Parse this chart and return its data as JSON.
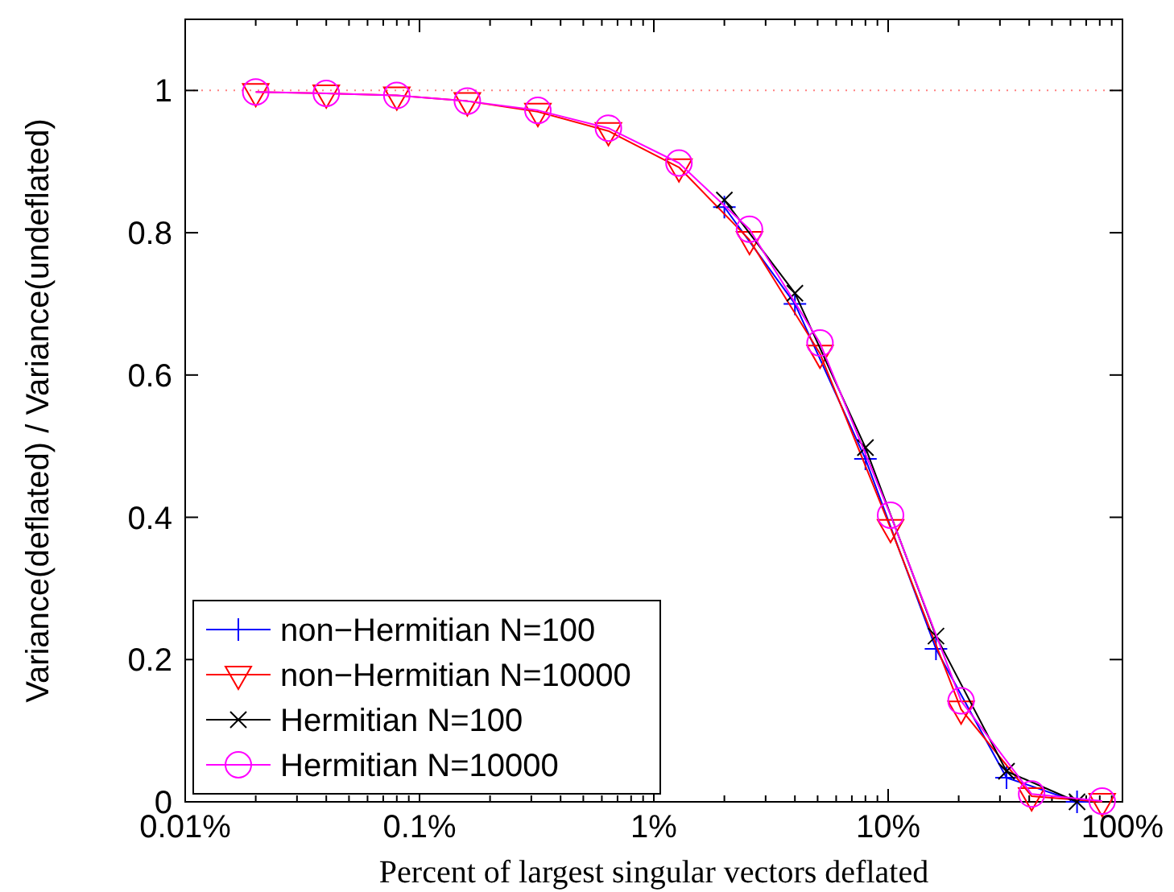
{
  "chart_data": {
    "type": "line",
    "xlabel": "Percent of largest singular vectors deflated",
    "ylabel": "Variance(deflated) / Variance(undeflated)",
    "log": "x",
    "xlim": [
      0.01,
      100
    ],
    "ylim": [
      0,
      1.1
    ],
    "xticks": [
      {
        "value": 0.01,
        "label": "0.01%"
      },
      {
        "value": 0.02,
        "label": null
      },
      {
        "value": 0.03,
        "label": null
      },
      {
        "value": 0.04,
        "label": null
      },
      {
        "value": 0.05,
        "label": null
      },
      {
        "value": 0.06,
        "label": null
      },
      {
        "value": 0.07,
        "label": null
      },
      {
        "value": 0.08,
        "label": null
      },
      {
        "value": 0.09,
        "label": null
      },
      {
        "value": 0.1,
        "label": "0.1%"
      },
      {
        "value": 0.2,
        "label": null
      },
      {
        "value": 0.3,
        "label": null
      },
      {
        "value": 0.4,
        "label": null
      },
      {
        "value": 0.5,
        "label": null
      },
      {
        "value": 0.6,
        "label": null
      },
      {
        "value": 0.7,
        "label": null
      },
      {
        "value": 0.8,
        "label": null
      },
      {
        "value": 0.9,
        "label": null
      },
      {
        "value": 1,
        "label": "1%"
      },
      {
        "value": 2,
        "label": null
      },
      {
        "value": 3,
        "label": null
      },
      {
        "value": 4,
        "label": null
      },
      {
        "value": 5,
        "label": null
      },
      {
        "value": 6,
        "label": null
      },
      {
        "value": 7,
        "label": null
      },
      {
        "value": 8,
        "label": null
      },
      {
        "value": 9,
        "label": null
      },
      {
        "value": 10,
        "label": "10%"
      },
      {
        "value": 20,
        "label": null
      },
      {
        "value": 30,
        "label": null
      },
      {
        "value": 40,
        "label": null
      },
      {
        "value": 50,
        "label": null
      },
      {
        "value": 60,
        "label": null
      },
      {
        "value": 70,
        "label": null
      },
      {
        "value": 80,
        "label": null
      },
      {
        "value": 90,
        "label": null
      },
      {
        "value": 100,
        "label": "100%"
      }
    ],
    "yticks": [
      0,
      0.2,
      0.4,
      0.6,
      0.8,
      1
    ],
    "grid": false,
    "legend": "bottom left",
    "ref_lines": [
      {
        "axis": "y",
        "value": 1,
        "color": "#ff8080",
        "line_style": "dotted"
      }
    ],
    "series": [
      {
        "name": "non−Hermitian N=100",
        "color": "#0000ff",
        "marker": "plus",
        "x": [
          2,
          4,
          8,
          16,
          32,
          64
        ],
        "values": [
          0.836,
          0.7,
          0.482,
          0.215,
          0.034,
          0
        ]
      },
      {
        "name": "non−Hermitian N=10000",
        "color": "#ff0000",
        "marker": "triangle",
        "x": [
          0.02,
          0.04,
          0.08,
          0.16,
          0.32,
          0.64,
          1.28,
          2.56,
          5.12,
          10.24,
          20.48,
          40.96,
          81.92
        ],
        "values": [
          0.998,
          0.996,
          0.993,
          0.985,
          0.97,
          0.943,
          0.892,
          0.79,
          0.63,
          0.385,
          0.13,
          0.008,
          0
        ]
      },
      {
        "name": "Hermitian N=100",
        "color": "#000000",
        "marker": "cross",
        "x": [
          2,
          4,
          8,
          16,
          32,
          64
        ],
        "values": [
          0.846,
          0.715,
          0.498,
          0.233,
          0.043,
          0
        ]
      },
      {
        "name": "Hermitian N=10000",
        "color": "#ff00ff",
        "marker": "circle",
        "x": [
          0.02,
          0.04,
          0.08,
          0.16,
          0.32,
          0.64,
          1.28,
          2.56,
          5.12,
          10.24,
          20.48,
          40.96,
          81.92
        ],
        "values": [
          0.998,
          0.996,
          0.993,
          0.985,
          0.972,
          0.947,
          0.898,
          0.805,
          0.645,
          0.403,
          0.142,
          0.011,
          0.001
        ]
      }
    ]
  }
}
